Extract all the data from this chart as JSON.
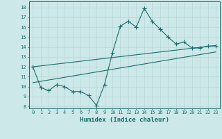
{
  "xlabel": "Humidex (Indice chaleur)",
  "bg_color": "#cde8e8",
  "line_color": "#1a6b6b",
  "grid_color": "#b8d8d8",
  "xlim": [
    -0.5,
    23.5
  ],
  "ylim": [
    7.8,
    18.6
  ],
  "yticks": [
    8,
    9,
    10,
    11,
    12,
    13,
    14,
    15,
    16,
    17,
    18
  ],
  "xticks": [
    0,
    1,
    2,
    3,
    4,
    5,
    6,
    7,
    8,
    9,
    10,
    11,
    12,
    13,
    14,
    15,
    16,
    17,
    18,
    19,
    20,
    21,
    22,
    23
  ],
  "main_x": [
    0,
    1,
    2,
    3,
    4,
    5,
    6,
    7,
    8,
    9,
    10,
    11,
    12,
    13,
    14,
    15,
    16,
    17,
    18,
    19,
    20,
    21,
    22,
    23
  ],
  "main_y": [
    12.0,
    9.9,
    9.6,
    10.2,
    10.0,
    9.5,
    9.5,
    9.1,
    8.1,
    10.2,
    13.4,
    16.1,
    16.6,
    16.0,
    17.9,
    16.6,
    15.8,
    15.0,
    14.3,
    14.5,
    13.9,
    13.9,
    14.1,
    14.1
  ],
  "trend1_x": [
    0,
    23
  ],
  "trend1_y": [
    12.0,
    14.15
  ],
  "trend2_x": [
    0,
    23
  ],
  "trend2_y": [
    10.4,
    13.5
  ],
  "tick_fontsize": 5.0,
  "label_fontsize": 6.5,
  "marker_size": 2.0,
  "line_width": 0.8
}
